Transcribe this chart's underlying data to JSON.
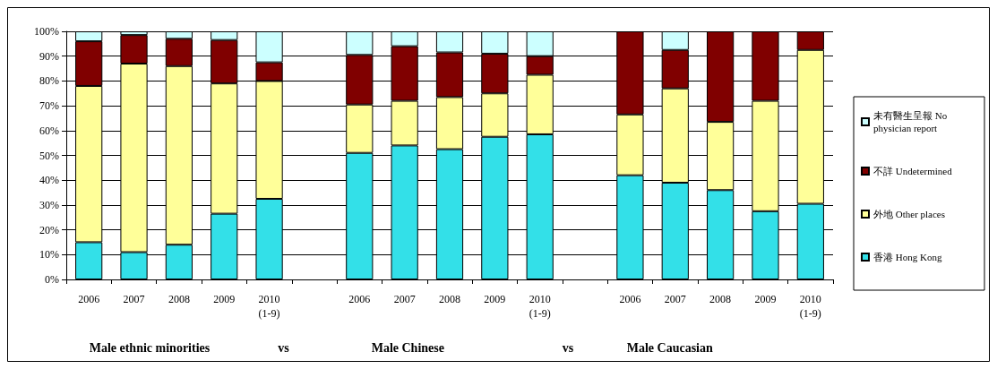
{
  "chart_data": {
    "type": "bar",
    "stacked": true,
    "categories": [
      "2006",
      "2007",
      "2008",
      "2009",
      "2010\n(1-9)",
      null,
      "2006",
      "2007",
      "2008",
      "2009",
      "2010\n(1-9)",
      null,
      "2006",
      "2007",
      "2008",
      "2009",
      "2010\n(1-9)"
    ],
    "series": [
      {
        "name": "香港 Hong Kong",
        "color": "#33e0e8",
        "values": [
          15,
          11,
          14,
          26.5,
          32.5,
          null,
          51,
          54,
          52.5,
          57.5,
          58.5,
          null,
          42,
          39,
          36,
          27.5,
          30.5
        ]
      },
      {
        "name": "外地 Other places",
        "color": "#ffff99",
        "values": [
          63,
          76,
          72,
          52.5,
          47.5,
          null,
          19.5,
          18,
          21,
          17.5,
          24,
          null,
          24.5,
          38,
          27.5,
          44.5,
          62
        ]
      },
      {
        "name": "不詳 Undetermined",
        "color": "#800000",
        "values": [
          18,
          11.5,
          11,
          17.5,
          7.5,
          null,
          20,
          22,
          18,
          16,
          7.5,
          null,
          33.5,
          15.5,
          36.5,
          28,
          7.5
        ]
      },
      {
        "name": "未有醫生呈報 No physician report",
        "color": "#ccffff",
        "values": [
          4,
          1.5,
          3,
          3.5,
          12.5,
          null,
          9.5,
          6,
          8.5,
          9,
          10,
          null,
          0,
          7.5,
          0,
          0,
          0
        ]
      }
    ],
    "ylim": [
      0,
      100
    ],
    "yticks": [
      {
        "value": 0,
        "label": "0%"
      },
      {
        "value": 10,
        "label": "10%"
      },
      {
        "value": 20,
        "label": "20%"
      },
      {
        "value": 30,
        "label": "30%"
      },
      {
        "value": 40,
        "label": "40%"
      },
      {
        "value": 50,
        "label": "50%"
      },
      {
        "value": 60,
        "label": "60%"
      },
      {
        "value": 70,
        "label": "70%"
      },
      {
        "value": 80,
        "label": "80%"
      },
      {
        "value": 90,
        "label": "90%"
      },
      {
        "value": 100,
        "label": "100%"
      }
    ],
    "grid": "y",
    "legend": "right",
    "annotations": [
      "Male ethnic minorities",
      "vs",
      "Male Chinese",
      "vs",
      "Male Caucasian"
    ]
  }
}
